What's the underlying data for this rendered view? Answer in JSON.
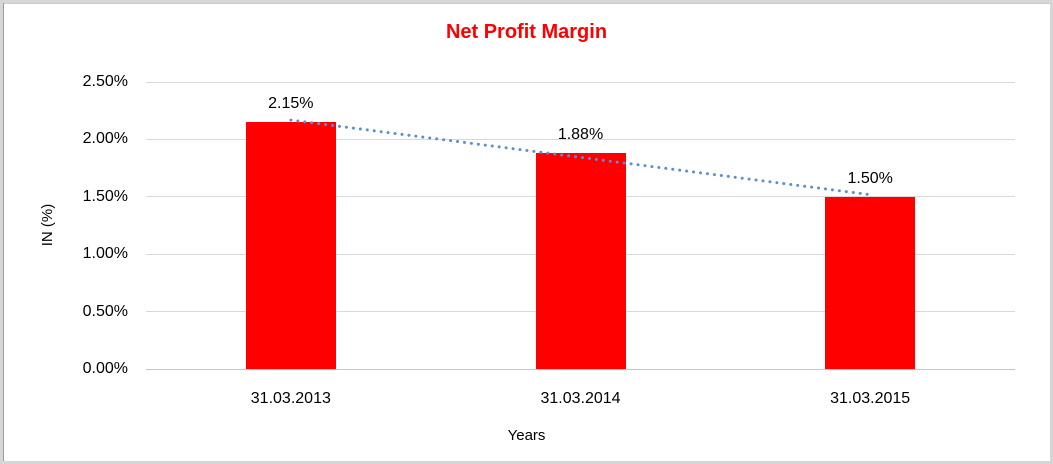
{
  "frame": {
    "background": "#ffffff",
    "border_color": "#d6d6d6"
  },
  "chart_data": {
    "type": "bar",
    "title": "Net Profit Margin",
    "title_color": "#ff0000",
    "categories": [
      "31.03.2013",
      "31.03.2014",
      "31.03.2015"
    ],
    "values": [
      2.15,
      1.88,
      1.5
    ],
    "data_labels": [
      "2.15%",
      "1.88%",
      "1.50%"
    ],
    "bar_color": "#ff0000",
    "xlabel": "Years",
    "ylabel": "IN (%)",
    "ylim": [
      0,
      2.5
    ],
    "ytick_values": [
      0,
      0.5,
      1,
      1.5,
      2,
      2.5
    ],
    "ytick_labels": [
      "0.00%",
      "0.50%",
      "1.00%",
      "1.50%",
      "2.00%",
      "2.50%"
    ],
    "grid": "horizontal",
    "gridline_color": "#d9d9d9",
    "legend": "none",
    "trendline": {
      "type": "linear",
      "style": "dotted",
      "color": "#5b8fd0"
    }
  }
}
